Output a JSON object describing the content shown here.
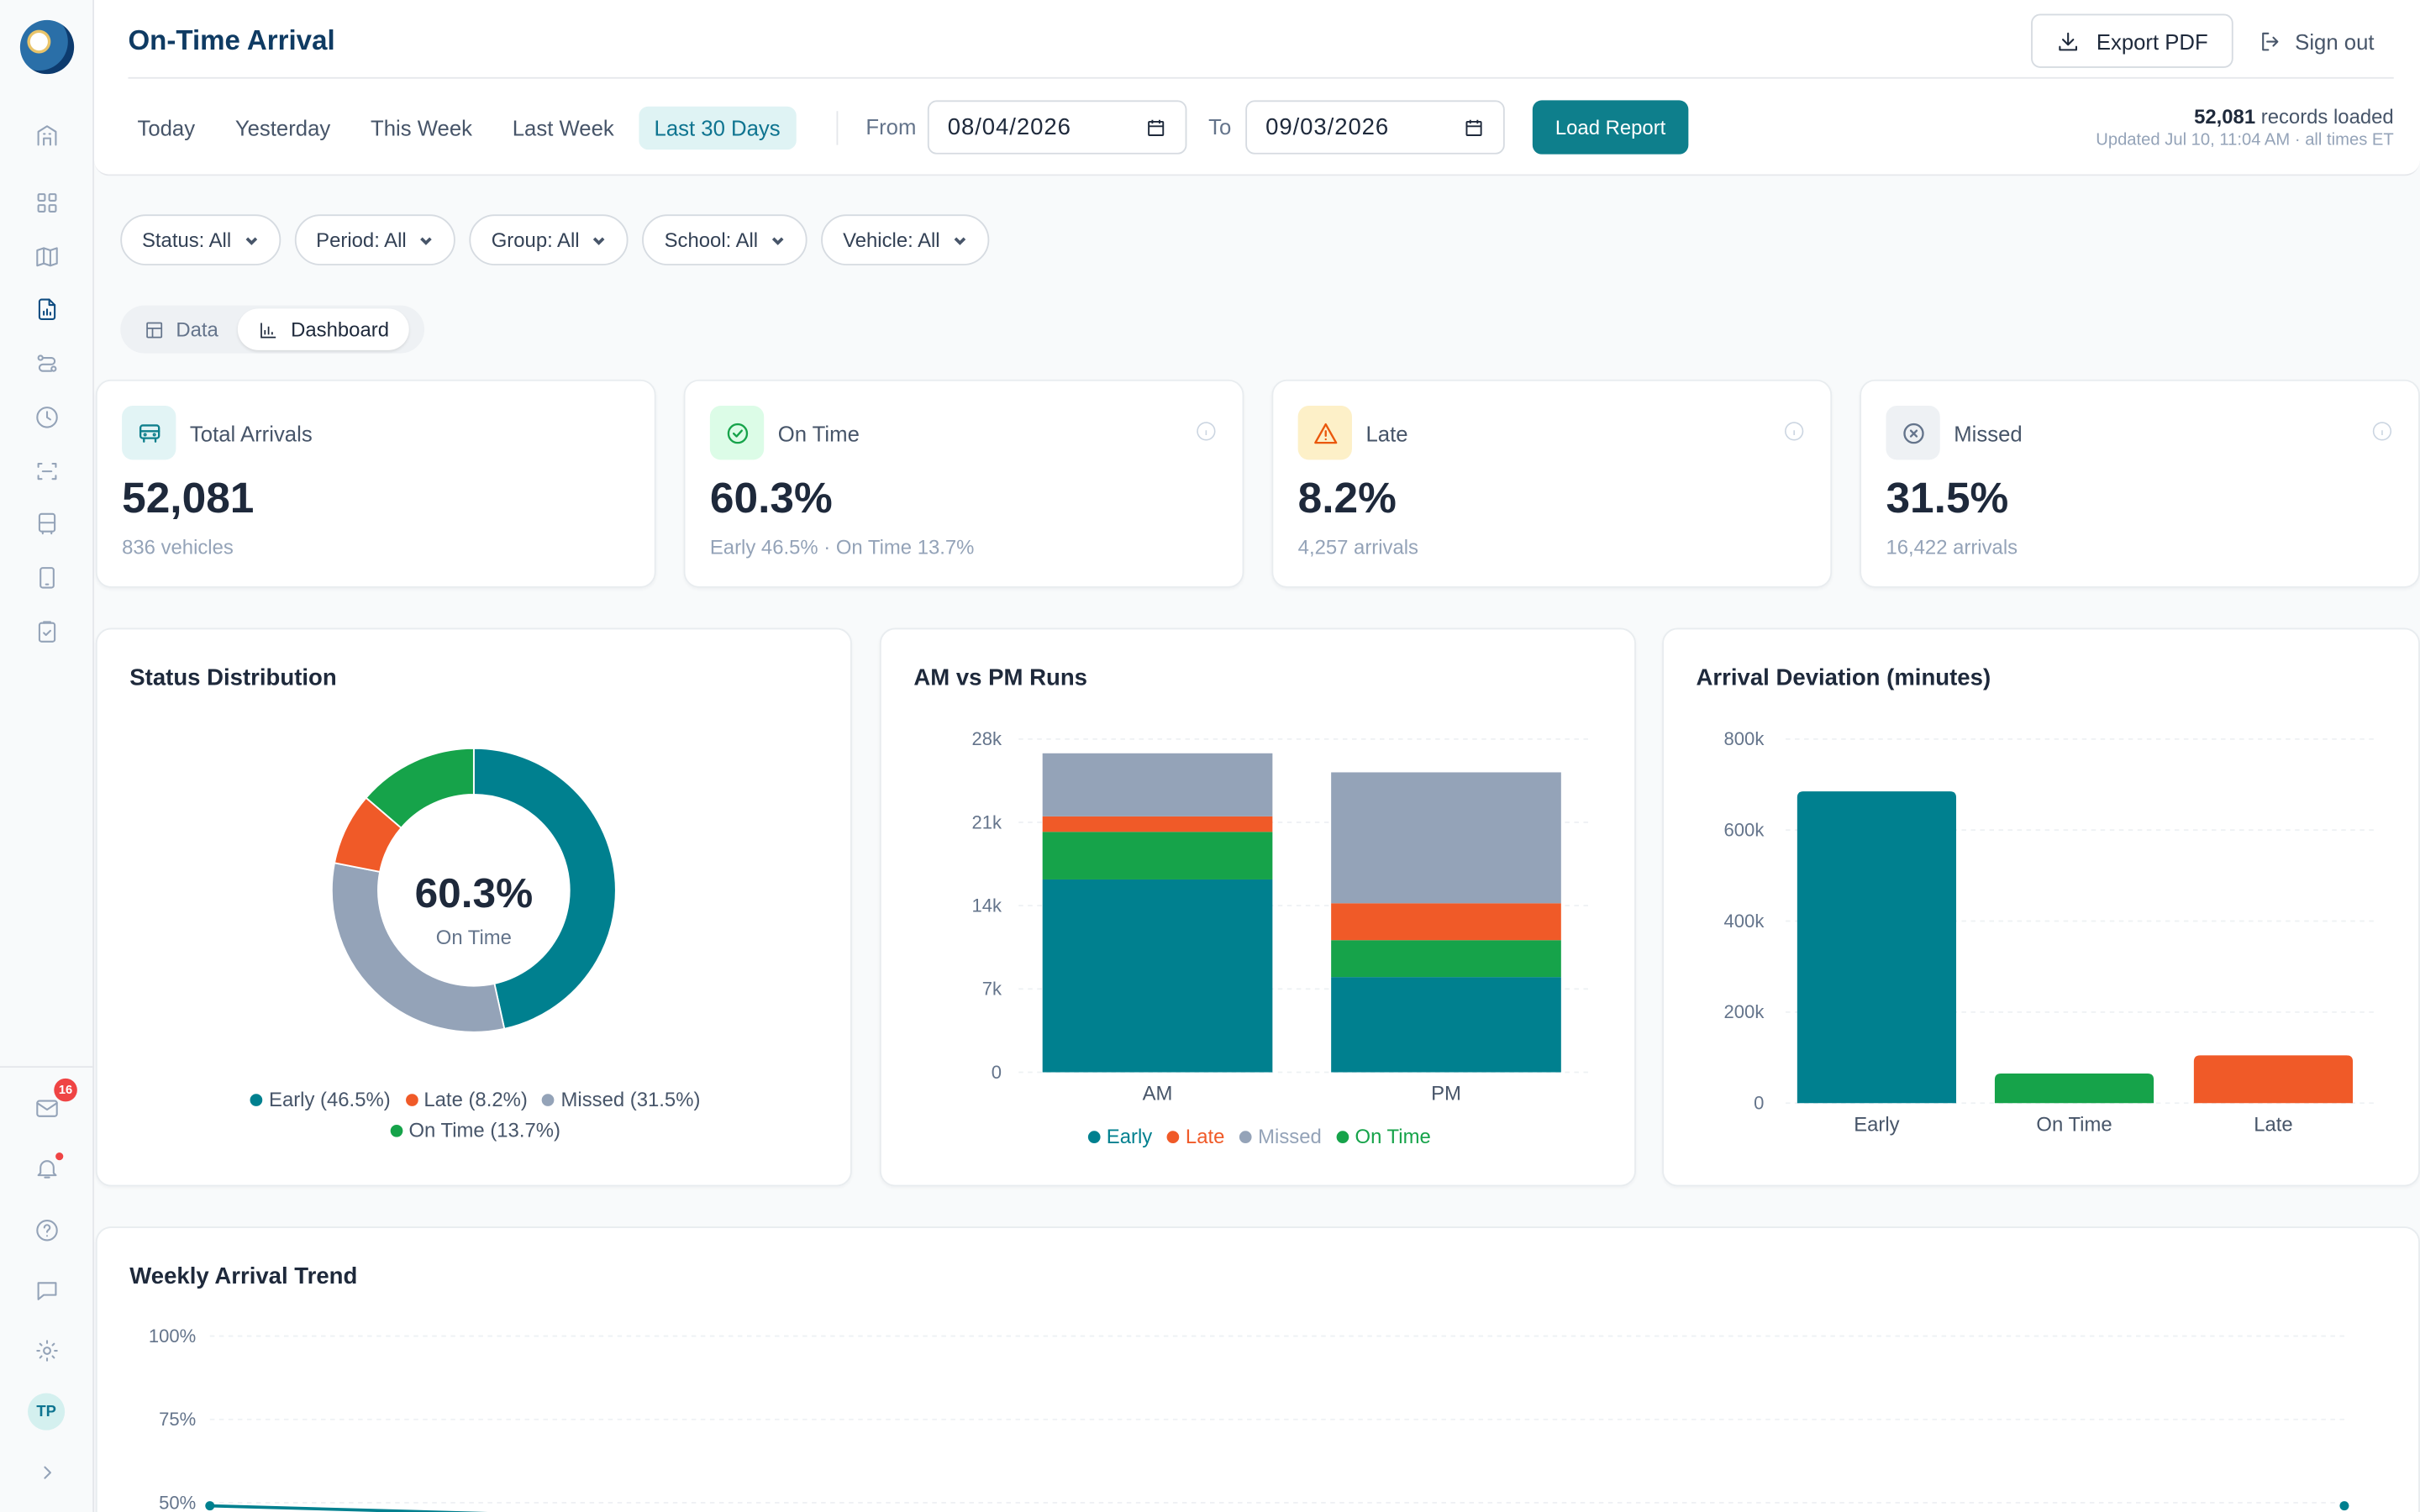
{
  "header": {
    "title": "On-Time Arrival",
    "export_label": "Export PDF",
    "signout_label": "Sign out"
  },
  "range_tabs": [
    {
      "label": "Today",
      "active": false
    },
    {
      "label": "Yesterday",
      "active": false
    },
    {
      "label": "This Week",
      "active": false
    },
    {
      "label": "Last Week",
      "active": false
    },
    {
      "label": "Last 30 Days",
      "active": true
    }
  ],
  "date_range": {
    "from_label": "From",
    "from_value": "08/04/2026",
    "to_label": "To",
    "to_value": "09/03/2026",
    "load_label": "Load Report"
  },
  "records": {
    "count": "52,081",
    "suffix": " records loaded",
    "updated": "Updated Jul 10, 11:04 AM · all times ET"
  },
  "filters": [
    {
      "label": "Status: All"
    },
    {
      "label": "Period: All"
    },
    {
      "label": "Group: All"
    },
    {
      "label": "School: All"
    },
    {
      "label": "Vehicle: All"
    }
  ],
  "view_toggle": {
    "data_label": "Data",
    "dashboard_label": "Dashboard",
    "active": "Dashboard"
  },
  "kpis": [
    {
      "label": "Total Arrivals",
      "value": "52,081",
      "sub": "836 vehicles",
      "icon": "bus-icon",
      "color": "#0e7f8c",
      "bg": "#e2f4f5"
    },
    {
      "label": "On Time",
      "value": "60.3%",
      "sub": "Early 46.5% · On Time 13.7%",
      "icon": "check-circle-icon",
      "color": "#16a34a",
      "bg": "#dcfce7"
    },
    {
      "label": "Late",
      "value": "8.2%",
      "sub": "4,257 arrivals",
      "icon": "warning-icon",
      "color": "#ea580c",
      "bg": "#fdf0c8"
    },
    {
      "label": "Missed",
      "value": "31.5%",
      "sub": "16,422 arrivals",
      "icon": "x-circle-icon",
      "color": "#64748b",
      "bg": "#eef1f4"
    }
  ],
  "colors": {
    "early": "#00808f",
    "on_time": "#16a34a",
    "late": "#f05a28",
    "missed": "#94a3b8",
    "primary": "#0e7f8c"
  },
  "sidebar": {
    "badge_count": "16",
    "avatar_initials": "TP"
  },
  "chart_data": [
    {
      "type": "pie",
      "title": "Status Distribution",
      "center_value": "60.3%",
      "center_label": "On Time",
      "slices": [
        {
          "name": "Early",
          "value": 46.5,
          "legend": "Early (46.5%)"
        },
        {
          "name": "Missed",
          "value": 31.5,
          "legend": "Missed (31.5%)"
        },
        {
          "name": "Late",
          "value": 8.2,
          "legend": "Late (8.2%)"
        },
        {
          "name": "On Time",
          "value": 13.7,
          "legend": "On Time (13.7%)"
        }
      ]
    },
    {
      "type": "bar",
      "title": "AM vs PM Runs",
      "stacked": true,
      "categories": [
        "AM",
        "PM"
      ],
      "ylim": [
        0,
        28000
      ],
      "yticks": [
        0,
        7000,
        14000,
        21000,
        28000
      ],
      "ytick_labels": [
        "0",
        "7k",
        "14k",
        "21k",
        "28k"
      ],
      "series": [
        {
          "name": "Early",
          "values": [
            16200,
            8000
          ]
        },
        {
          "name": "On Time",
          "values": [
            4000,
            3100
          ]
        },
        {
          "name": "Late",
          "values": [
            1300,
            3100
          ]
        },
        {
          "name": "Missed",
          "values": [
            5300,
            11000
          ]
        }
      ]
    },
    {
      "type": "bar",
      "title": "Arrival Deviation (minutes)",
      "categories": [
        "Early",
        "On Time",
        "Late"
      ],
      "values": [
        685000,
        65000,
        105000
      ],
      "ylim": [
        0,
        800000
      ],
      "yticks": [
        0,
        200000,
        400000,
        600000,
        800000
      ],
      "ytick_labels": [
        "0",
        "200k",
        "400k",
        "600k",
        "800k"
      ]
    },
    {
      "type": "line",
      "title": "Weekly Arrival Trend",
      "ytick_labels": [
        "50%",
        "75%",
        "100%"
      ],
      "yticks": [
        50,
        75,
        100
      ],
      "ylim": [
        50,
        100
      ]
    }
  ]
}
